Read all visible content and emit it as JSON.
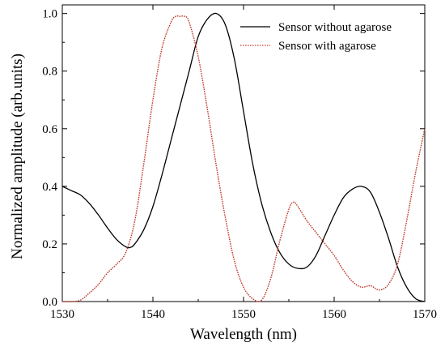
{
  "chart_data": {
    "type": "line",
    "title": "",
    "xlabel": "Wavelength (nm)",
    "ylabel": "Normalized amplitude (arb.units)",
    "xlim": [
      1530,
      1570
    ],
    "ylim": [
      0,
      1.03
    ],
    "xticks": [
      1530,
      1540,
      1550,
      1560,
      1570
    ],
    "xtick_labels": [
      "1530",
      "1540",
      "1550",
      "1560",
      "1570"
    ],
    "yticks": [
      0,
      0.2,
      0.4,
      0.6,
      0.8,
      1.0
    ],
    "ytick_labels": [
      "0.0",
      "0.2",
      "0.4",
      "0.6",
      "0.8",
      "1.0"
    ],
    "grid": false,
    "legend_position": "top-right",
    "series": [
      {
        "name": "Sensor without agarose",
        "color": "#000000",
        "style": "solid",
        "x": [
          1530,
          1531,
          1532,
          1533,
          1534,
          1535,
          1536,
          1537,
          1537.5,
          1538,
          1539,
          1540,
          1541,
          1542,
          1543,
          1544,
          1545,
          1546,
          1547,
          1548,
          1549,
          1550,
          1551,
          1552,
          1553,
          1554,
          1555,
          1556,
          1557,
          1558,
          1559,
          1560,
          1561,
          1562,
          1563,
          1564,
          1565,
          1566,
          1567,
          1568,
          1569,
          1570
        ],
        "y": [
          0.4,
          0.385,
          0.37,
          0.34,
          0.3,
          0.255,
          0.215,
          0.19,
          0.188,
          0.2,
          0.25,
          0.33,
          0.44,
          0.56,
          0.68,
          0.8,
          0.92,
          0.98,
          1.0,
          0.96,
          0.84,
          0.66,
          0.48,
          0.34,
          0.24,
          0.17,
          0.13,
          0.115,
          0.12,
          0.16,
          0.23,
          0.3,
          0.36,
          0.39,
          0.4,
          0.38,
          0.31,
          0.22,
          0.12,
          0.05,
          0.01,
          0.0
        ]
      },
      {
        "name": "Sensor with agarose",
        "color": "#c0392b",
        "style": "dotted",
        "x": [
          1530,
          1531,
          1532,
          1533,
          1534,
          1535,
          1536,
          1537,
          1538,
          1539,
          1540,
          1541,
          1542,
          1542.5,
          1543,
          1543.5,
          1544,
          1545,
          1546,
          1547,
          1548,
          1549,
          1550,
          1551,
          1552,
          1553,
          1554,
          1555,
          1555.5,
          1556,
          1557,
          1558,
          1559,
          1560,
          1561,
          1562,
          1563,
          1564,
          1565,
          1566,
          1567,
          1568,
          1569,
          1570
        ],
        "y": [
          0.0,
          0.0,
          0.005,
          0.03,
          0.06,
          0.1,
          0.13,
          0.17,
          0.28,
          0.48,
          0.7,
          0.88,
          0.97,
          0.99,
          0.99,
          0.99,
          0.97,
          0.85,
          0.67,
          0.47,
          0.29,
          0.14,
          0.05,
          0.01,
          0.005,
          0.08,
          0.21,
          0.32,
          0.345,
          0.33,
          0.28,
          0.24,
          0.2,
          0.16,
          0.11,
          0.07,
          0.05,
          0.055,
          0.04,
          0.06,
          0.13,
          0.28,
          0.45,
          0.6
        ]
      }
    ]
  }
}
